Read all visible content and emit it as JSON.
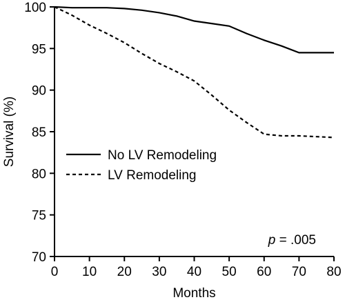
{
  "chart_data": {
    "type": "line",
    "xlabel": "Months",
    "ylabel": "Survival (%)",
    "xlim": [
      0,
      80
    ],
    "ylim": [
      70,
      100
    ],
    "x_ticks": [
      "0",
      "10",
      "20",
      "30",
      "40",
      "50",
      "60",
      "70",
      "80"
    ],
    "y_ticks": [
      "70",
      "75",
      "80",
      "85",
      "90",
      "95",
      "100"
    ],
    "grid": false,
    "legend_position": "middle-left",
    "annotation": {
      "italic": "p",
      "rest": " = .005"
    },
    "series": [
      {
        "name": "No LV Remodeling",
        "style": "solid",
        "x": [
          0,
          5,
          10,
          15,
          20,
          25,
          30,
          35,
          40,
          45,
          50,
          55,
          60,
          65,
          70,
          75,
          80
        ],
        "y": [
          100,
          99.9,
          99.9,
          99.9,
          99.8,
          99.6,
          99.3,
          98.9,
          98.3,
          98.0,
          97.7,
          96.8,
          96.0,
          95.3,
          94.5,
          94.5,
          94.5
        ]
      },
      {
        "name": "LV Remodeling",
        "style": "dashed",
        "x": [
          0,
          5,
          10,
          15,
          20,
          25,
          30,
          35,
          40,
          45,
          50,
          55,
          60,
          65,
          70,
          75,
          80
        ],
        "y": [
          100,
          99.0,
          97.8,
          96.8,
          95.7,
          94.4,
          93.2,
          92.2,
          91.1,
          89.4,
          87.6,
          86.1,
          84.7,
          84.5,
          84.5,
          84.4,
          84.3
        ]
      }
    ]
  }
}
